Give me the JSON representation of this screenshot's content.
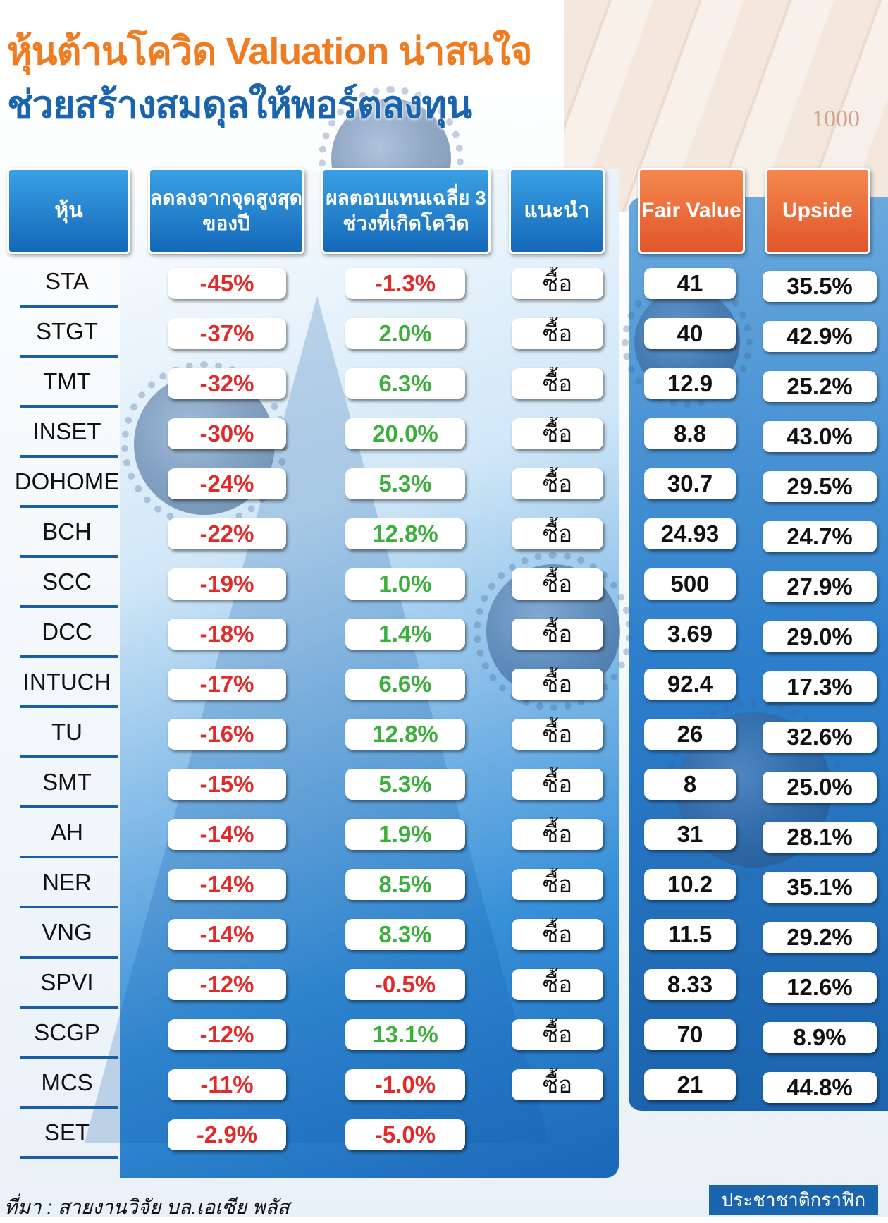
{
  "title_line1": "หุ้นต้านโควิด Valuation น่าสนใจ",
  "title_line2": "ช่วยสร้างสมดุลให้พอร์ตลงทุน",
  "headers": {
    "stock": "หุ้น",
    "drop": "ลดลงจากจุดสูงสุดของปี",
    "return": "ผลตอบแทนเฉลี่ย 3 ช่วงที่เกิดโควิด",
    "rec": "แนะนำ",
    "fair_value": "Fair Value",
    "upside": "Upside"
  },
  "colors": {
    "header_blue": "#1468b8",
    "header_orange": "#e2552a",
    "negative": "#e02b2b",
    "positive": "#3cae3c",
    "title_orange": "#f07c22",
    "title_blue": "#1a63ad"
  },
  "rows": [
    {
      "stock": "STA",
      "drop": "-45%",
      "ret": "-1.3%",
      "rec": "ซื้อ",
      "fv": "41",
      "up": "35.5%"
    },
    {
      "stock": "STGT",
      "drop": "-37%",
      "ret": "2.0%",
      "rec": "ซื้อ",
      "fv": "40",
      "up": "42.9%"
    },
    {
      "stock": "TMT",
      "drop": "-32%",
      "ret": "6.3%",
      "rec": "ซื้อ",
      "fv": "12.9",
      "up": "25.2%"
    },
    {
      "stock": "INSET",
      "drop": "-30%",
      "ret": "20.0%",
      "rec": "ซื้อ",
      "fv": "8.8",
      "up": "43.0%"
    },
    {
      "stock": "DOHOME",
      "drop": "-24%",
      "ret": "5.3%",
      "rec": "ซื้อ",
      "fv": "30.7",
      "up": "29.5%"
    },
    {
      "stock": "BCH",
      "drop": "-22%",
      "ret": "12.8%",
      "rec": "ซื้อ",
      "fv": "24.93",
      "up": "24.7%"
    },
    {
      "stock": "SCC",
      "drop": "-19%",
      "ret": "1.0%",
      "rec": "ซื้อ",
      "fv": "500",
      "up": "27.9%"
    },
    {
      "stock": "DCC",
      "drop": "-18%",
      "ret": "1.4%",
      "rec": "ซื้อ",
      "fv": "3.69",
      "up": "29.0%"
    },
    {
      "stock": "INTUCH",
      "drop": "-17%",
      "ret": "6.6%",
      "rec": "ซื้อ",
      "fv": "92.4",
      "up": "17.3%"
    },
    {
      "stock": "TU",
      "drop": "-16%",
      "ret": "12.8%",
      "rec": "ซื้อ",
      "fv": "26",
      "up": "32.6%"
    },
    {
      "stock": "SMT",
      "drop": "-15%",
      "ret": "5.3%",
      "rec": "ซื้อ",
      "fv": "8",
      "up": "25.0%"
    },
    {
      "stock": "AH",
      "drop": "-14%",
      "ret": "1.9%",
      "rec": "ซื้อ",
      "fv": "31",
      "up": "28.1%"
    },
    {
      "stock": "NER",
      "drop": "-14%",
      "ret": "8.5%",
      "rec": "ซื้อ",
      "fv": "10.2",
      "up": "35.1%"
    },
    {
      "stock": "VNG",
      "drop": "-14%",
      "ret": "8.3%",
      "rec": "ซื้อ",
      "fv": "11.5",
      "up": "29.2%"
    },
    {
      "stock": "SPVI",
      "drop": "-12%",
      "ret": "-0.5%",
      "rec": "ซื้อ",
      "fv": "8.33",
      "up": "12.6%"
    },
    {
      "stock": "SCGP",
      "drop": "-12%",
      "ret": "13.1%",
      "rec": "ซื้อ",
      "fv": "70",
      "up": "8.9%"
    },
    {
      "stock": "MCS",
      "drop": "-11%",
      "ret": "-1.0%",
      "rec": "ซื้อ",
      "fv": "21",
      "up": "44.8%"
    },
    {
      "stock": "SET",
      "drop": "-2.9%",
      "ret": "-5.0%"
    }
  ],
  "source": "ที่มา : สายงานวิจัย บล.เอเซีย พลัส",
  "credit": "ประชาชาติกราฟิก",
  "banknote_text": "1000"
}
